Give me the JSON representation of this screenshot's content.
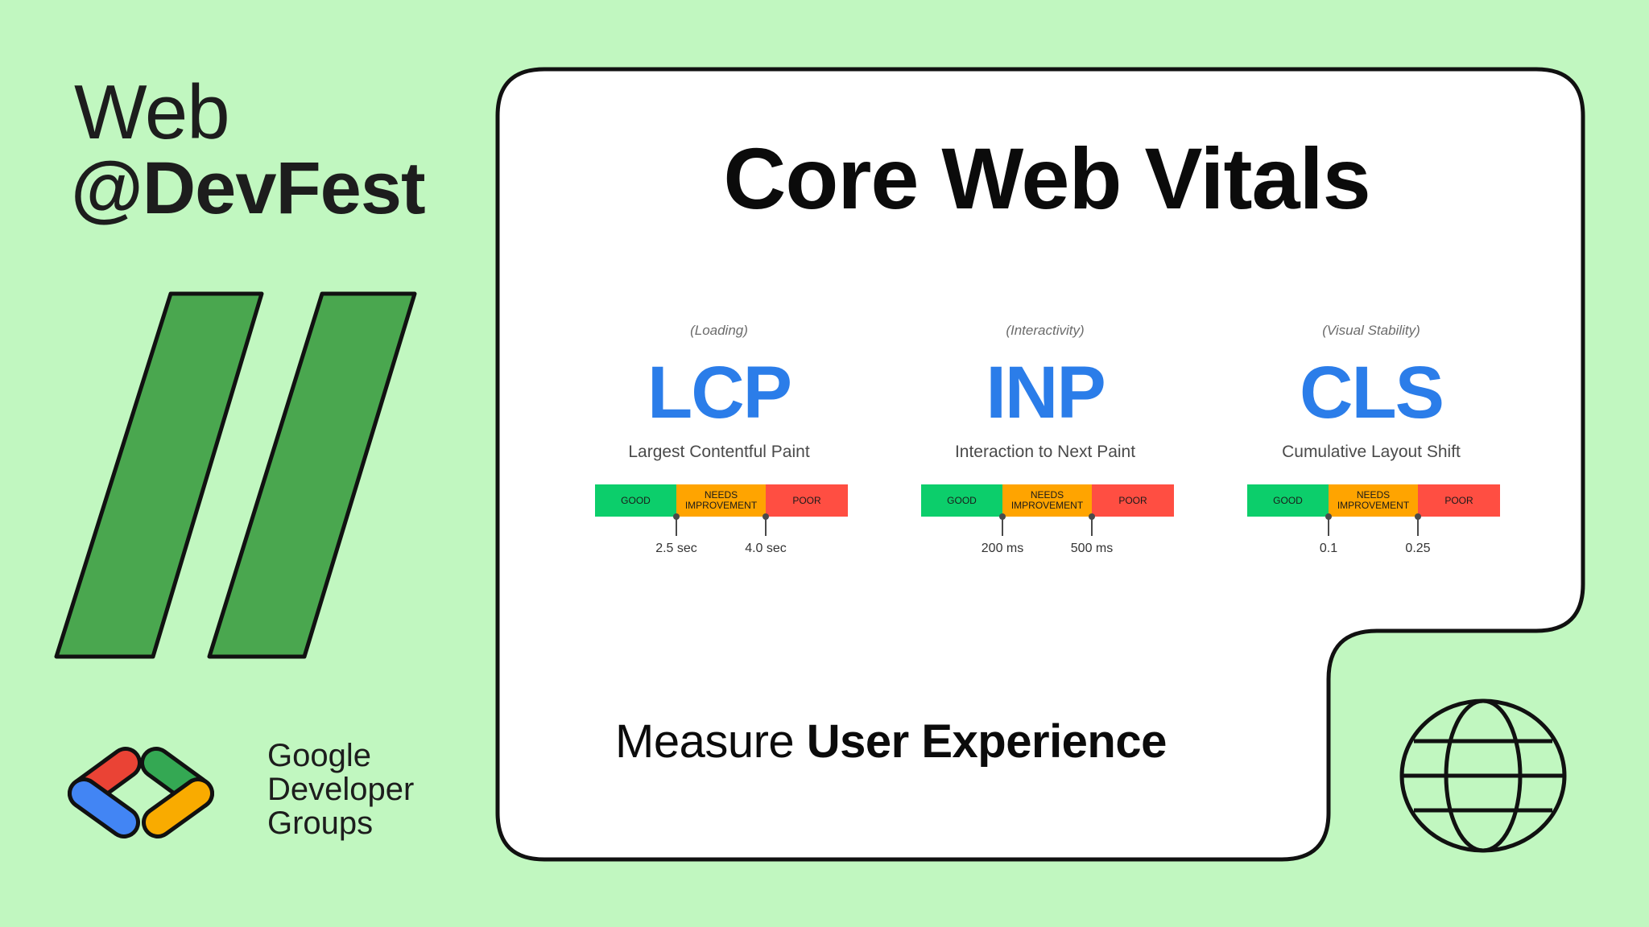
{
  "brand": {
    "line1": "Web",
    "line2": "@DevFest"
  },
  "gdg": {
    "lines": [
      "Google",
      "Developer",
      "Groups"
    ]
  },
  "card": {
    "title": "Core Web Vitals",
    "metrics": [
      {
        "category": "(Loading)",
        "abbr": "LCP",
        "name": "Largest Contentful Paint",
        "segments": [
          "GOOD",
          "NEEDS IMPROVEMENT",
          "POOR"
        ],
        "thresholds": [
          "2.5 sec",
          "4.0 sec"
        ]
      },
      {
        "category": "(Interactivity)",
        "abbr": "INP",
        "name": "Interaction to Next Paint",
        "segments": [
          "GOOD",
          "NEEDS IMPROVEMENT",
          "POOR"
        ],
        "thresholds": [
          "200 ms",
          "500 ms"
        ]
      },
      {
        "category": "(Visual Stability)",
        "abbr": "CLS",
        "name": "Cumulative Layout Shift",
        "segments": [
          "GOOD",
          "NEEDS IMPROVEMENT",
          "POOR"
        ],
        "thresholds": [
          "0.1",
          "0.25"
        ]
      }
    ],
    "tagline": {
      "regular": "Measure ",
      "bold": "User Experience"
    }
  },
  "colors": {
    "background": "#c1f7c0",
    "slash_green": "#4aa74f",
    "metric_blue": "#2b7de9",
    "good": "#0cce6b",
    "needs_improvement": "#ffa400",
    "poor": "#ff4e42",
    "logo_red": "#ea4335",
    "logo_blue": "#4285f4",
    "logo_green": "#34a853",
    "logo_yellow": "#f9ab00"
  },
  "icons": [
    "double-slash-graphic",
    "gdg-logo-icon",
    "globe-icon"
  ]
}
